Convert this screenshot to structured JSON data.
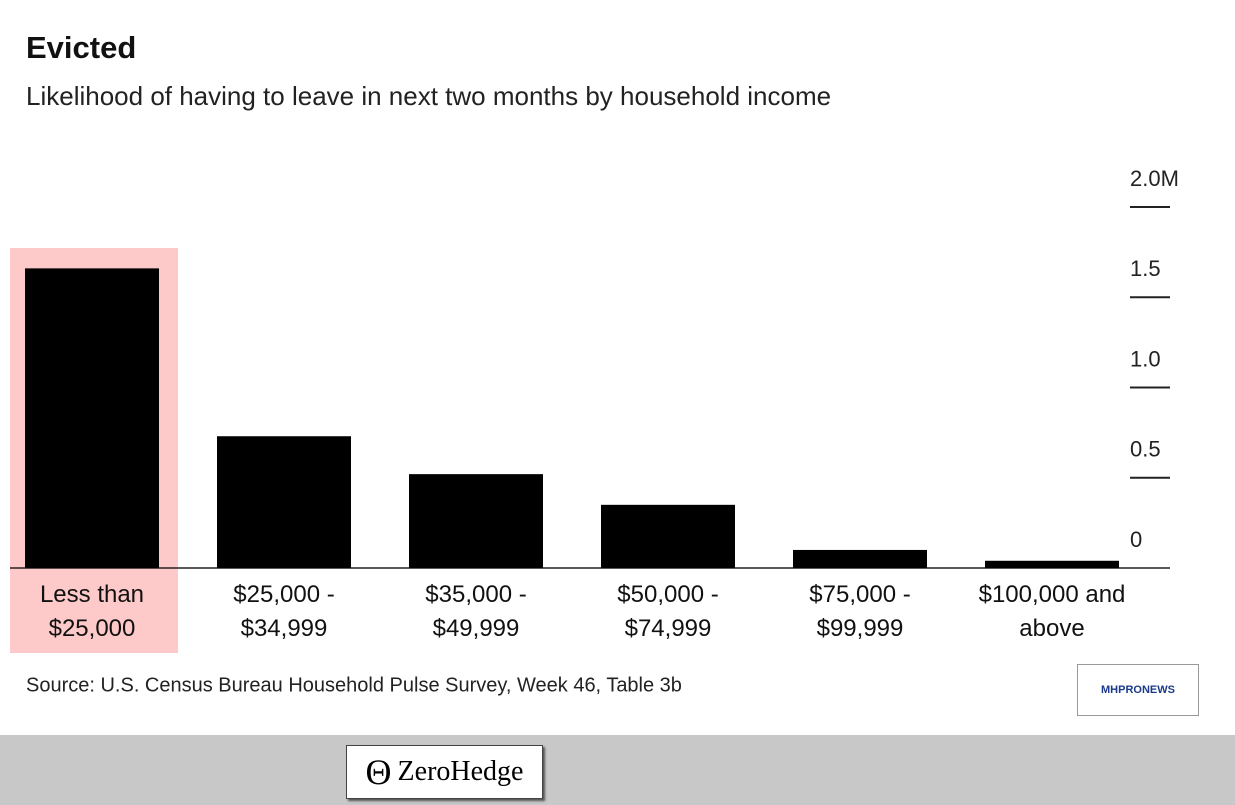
{
  "chart_data": {
    "type": "bar",
    "title": "Evicted",
    "subtitle": "Likelihood of having to leave in next two months by household income",
    "categories": [
      "Less than $25,000",
      "$25,000 - $34,999",
      "$35,000 - $49,999",
      "$50,000 - $74,999",
      "$75,000 - $99,999",
      "$100,000 and above"
    ],
    "values": [
      1.66,
      0.73,
      0.52,
      0.35,
      0.1,
      0.04
    ],
    "color": "#000000",
    "highlight_color": "#fdc9c9",
    "ylim": [
      0,
      2
    ],
    "yticks": [
      0,
      0.5,
      {
        "value": 1,
        "label": "1.0"
      },
      1.5,
      {
        "value": 2,
        "label": "2.0M"
      }
    ],
    "source": "Source: U.S. Census Bureau Household Pulse Survey, Week 46, Table 3b"
  },
  "watermark": "MHPRONEWS",
  "footer": {
    "brand": "ZeroHedge"
  }
}
